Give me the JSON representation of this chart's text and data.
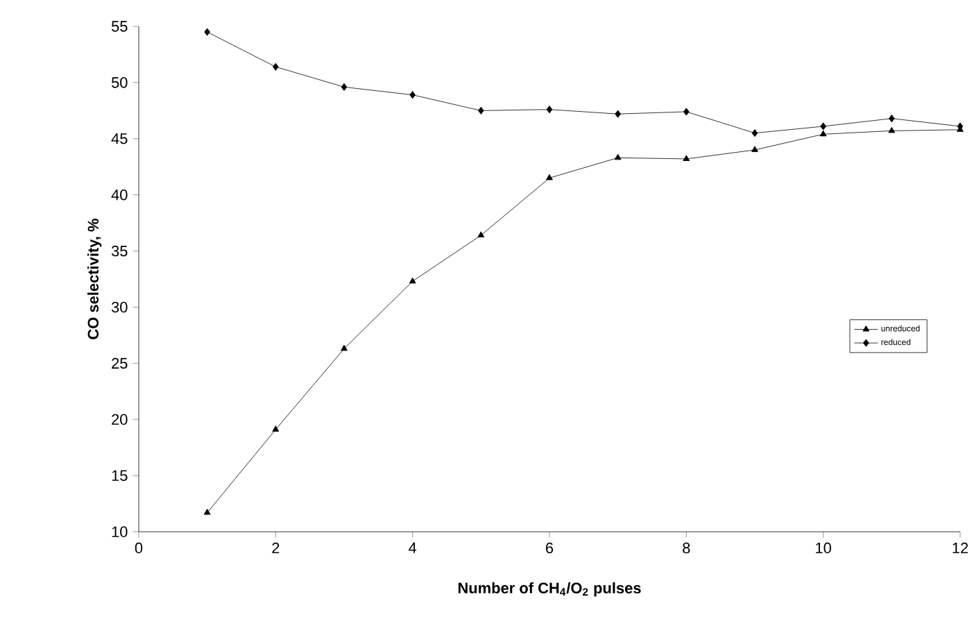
{
  "chart_data": {
    "type": "line",
    "xlabel": "Number of CH$_{4}$/O$_{2}$ pulses",
    "ylabel": "CO selectivity, %",
    "x": [
      1,
      2,
      3,
      4,
      5,
      6,
      7,
      8,
      9,
      10,
      11,
      12
    ],
    "series": [
      {
        "name": "unreduced",
        "color": "#000000",
        "marker": "triangle",
        "values": [
          11.7,
          19.1,
          26.3,
          32.3,
          36.4,
          41.5,
          43.3,
          43.2,
          44.0,
          45.4,
          45.7,
          45.8
        ]
      },
      {
        "name": "reduced",
        "color": "#000000",
        "marker": "diamond",
        "values": [
          54.5,
          51.4,
          49.6,
          48.9,
          47.5,
          47.6,
          47.2,
          47.4,
          45.5,
          46.1,
          46.8,
          46.1
        ]
      }
    ],
    "xlim": [
      0,
      12
    ],
    "xticks": [
      0,
      2,
      4,
      6,
      8,
      10,
      12
    ],
    "ylim": [
      10,
      55
    ],
    "yticks": [
      10,
      15,
      20,
      25,
      30,
      35,
      40,
      45,
      50,
      55
    ],
    "grid": false,
    "legend": "right",
    "line_style": "solid"
  }
}
